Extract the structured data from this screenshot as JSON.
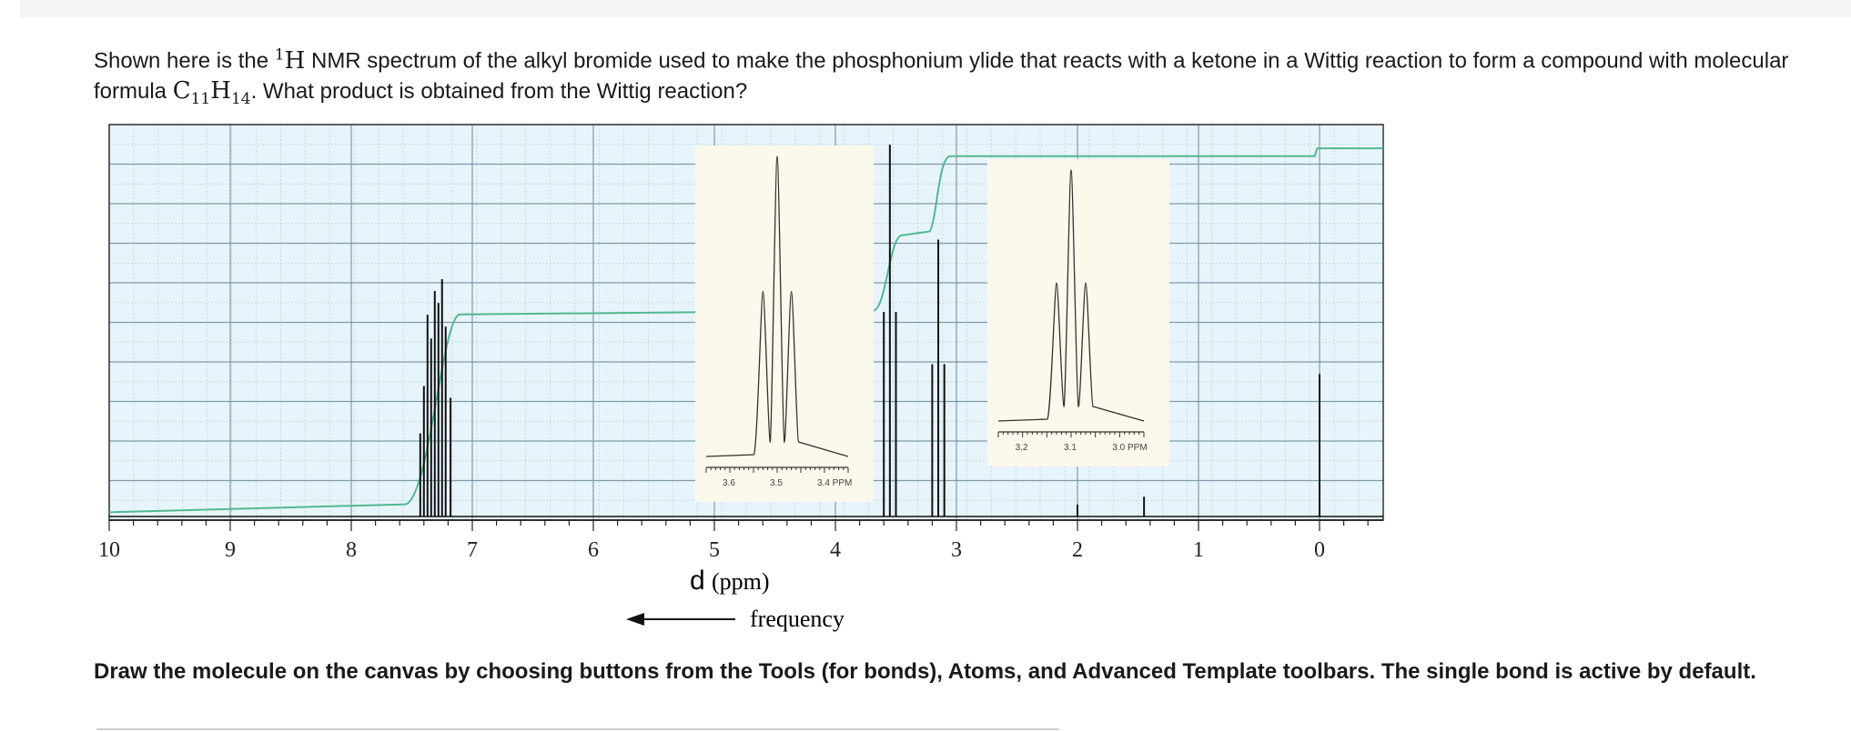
{
  "question": {
    "part1": "Shown here is the ",
    "nucleus_mass": "1",
    "nucleus_symbol": "H",
    "part2": " NMR spectrum of the alkyl bromide used to make the phosphonium ylide that reacts with a ketone in a Wittig reaction to form a compound with molecular formula ",
    "formula_c": "C",
    "formula_c_count": "11",
    "formula_h": "H",
    "formula_h_count": "14",
    "part3": ". What product is obtained from the Wittig reaction?"
  },
  "instructions": "Draw the molecule on the canvas by choosing buttons from the Tools (for bonds), Atoms, and Advanced Template toolbars. The single bond is active by default.",
  "colors": {
    "grid_bg": "#e8f4fb",
    "grid_major": "#7f9aaa",
    "grid_minor": "#b8d0dc",
    "spectrum": "#111111",
    "integral": "#52b890",
    "inset_bg": "#fbf8ec"
  },
  "chart_data": {
    "type": "line",
    "title": "",
    "xlabel_symbol": "d",
    "xlabel_unit": "(ppm)",
    "frequency_label": "frequency",
    "xlim": [
      10,
      -0.5
    ],
    "x_reversed": true,
    "x_ticks": [
      "10",
      "9",
      "8",
      "7",
      "6",
      "5",
      "4",
      "3",
      "2",
      "1",
      "0"
    ],
    "grid": true,
    "peaks": [
      {
        "ppm": 7.3,
        "height": 0.6,
        "pattern": "multiplet"
      },
      {
        "ppm": 3.55,
        "height": 0.94,
        "pattern": "triplet"
      },
      {
        "ppm": 3.15,
        "height": 0.7,
        "pattern": "triplet"
      },
      {
        "ppm": 2.0,
        "height": 0.03,
        "pattern": "singlet"
      },
      {
        "ppm": 1.45,
        "height": 0.05,
        "pattern": "singlet"
      },
      {
        "ppm": 0.0,
        "height": 0.36,
        "pattern": "singlet"
      }
    ],
    "integral_levels": [
      {
        "after_ppm": 7.3,
        "level": 0.52
      },
      {
        "after_ppm": 3.55,
        "level": 0.72
      },
      {
        "after_ppm": 3.15,
        "level": 0.92
      },
      {
        "after_ppm": 0.0,
        "level": 0.94
      }
    ],
    "insets": [
      {
        "center_ppm": 3.5,
        "ticks": [
          "3.6",
          "3.5",
          "3.4 PPM"
        ],
        "tick_ppm": [
          3.6,
          3.5,
          3.4
        ],
        "range_ppm": [
          3.65,
          3.35
        ]
      },
      {
        "center_ppm": 3.1,
        "ticks": [
          "3.2",
          "3.1",
          "3.0 PPM"
        ],
        "tick_ppm": [
          3.2,
          3.1,
          3.0
        ],
        "range_ppm": [
          3.25,
          2.95
        ]
      }
    ]
  }
}
